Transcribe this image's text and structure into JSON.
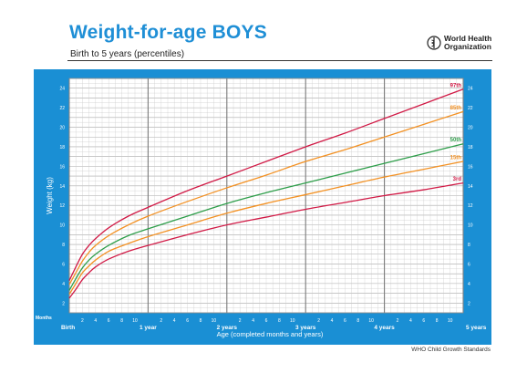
{
  "header": {
    "title": "Weight-for-age BOYS",
    "subtitle": "Birth to 5 years (percentiles)",
    "org_line1": "World Health",
    "org_line2": "Organization",
    "logo_icon": "who-emblem-icon"
  },
  "footer": {
    "source": "WHO Child Growth Standards"
  },
  "colors": {
    "frame": "#1a8fd4",
    "grid_minor": "#c9c9c9",
    "grid_major": "#7a7a7a",
    "p97": "#d11a46",
    "p85": "#f39123",
    "p50": "#2e9e4a",
    "p15": "#f39123",
    "p3": "#d11a46"
  },
  "chart_data": {
    "type": "line",
    "title": "Weight-for-age BOYS",
    "subtitle": "Birth to 5 years (percentiles)",
    "xlabel": "Age (completed months and years)",
    "ylabel": "Weight (kg)",
    "xlim": [
      0,
      60
    ],
    "ylim": [
      1,
      25
    ],
    "y_ticks": [
      2,
      4,
      6,
      8,
      10,
      12,
      14,
      16,
      18,
      20,
      22,
      24
    ],
    "x_months_label": "Months",
    "x_month_ticks": [
      2,
      4,
      6,
      8,
      10
    ],
    "x_year_labels": [
      "Birth",
      "1 year",
      "2 years",
      "3 years",
      "4 years",
      "5 years"
    ],
    "grid": true,
    "x": [
      0,
      1,
      2,
      3,
      4,
      6,
      9,
      12,
      18,
      24,
      30,
      36,
      42,
      48,
      54,
      60
    ],
    "series": [
      {
        "name": "97th",
        "color": "#d11a46",
        "values": [
          4.3,
          5.7,
          7.0,
          7.9,
          8.6,
          9.7,
          10.9,
          11.8,
          13.5,
          15.0,
          16.5,
          18.0,
          19.4,
          20.9,
          22.4,
          23.9
        ]
      },
      {
        "name": "85th",
        "color": "#f39123",
        "values": [
          3.9,
          5.1,
          6.3,
          7.2,
          7.9,
          8.9,
          10.0,
          10.9,
          12.4,
          13.8,
          15.1,
          16.5,
          17.7,
          19.0,
          20.3,
          21.6
        ]
      },
      {
        "name": "50th",
        "color": "#2e9e4a",
        "values": [
          3.3,
          4.5,
          5.6,
          6.4,
          7.0,
          7.9,
          8.9,
          9.6,
          10.9,
          12.2,
          13.3,
          14.3,
          15.3,
          16.3,
          17.3,
          18.3
        ]
      },
      {
        "name": "15th",
        "color": "#f39123",
        "values": [
          2.9,
          4.0,
          5.1,
          5.8,
          6.4,
          7.3,
          8.1,
          8.8,
          10.0,
          11.2,
          12.2,
          13.1,
          14.0,
          14.9,
          15.7,
          16.5
        ]
      },
      {
        "name": "3rd",
        "color": "#d11a46",
        "values": [
          2.5,
          3.4,
          4.4,
          5.1,
          5.7,
          6.5,
          7.3,
          7.9,
          9.0,
          10.0,
          10.8,
          11.6,
          12.3,
          13.0,
          13.6,
          14.3
        ]
      }
    ]
  }
}
